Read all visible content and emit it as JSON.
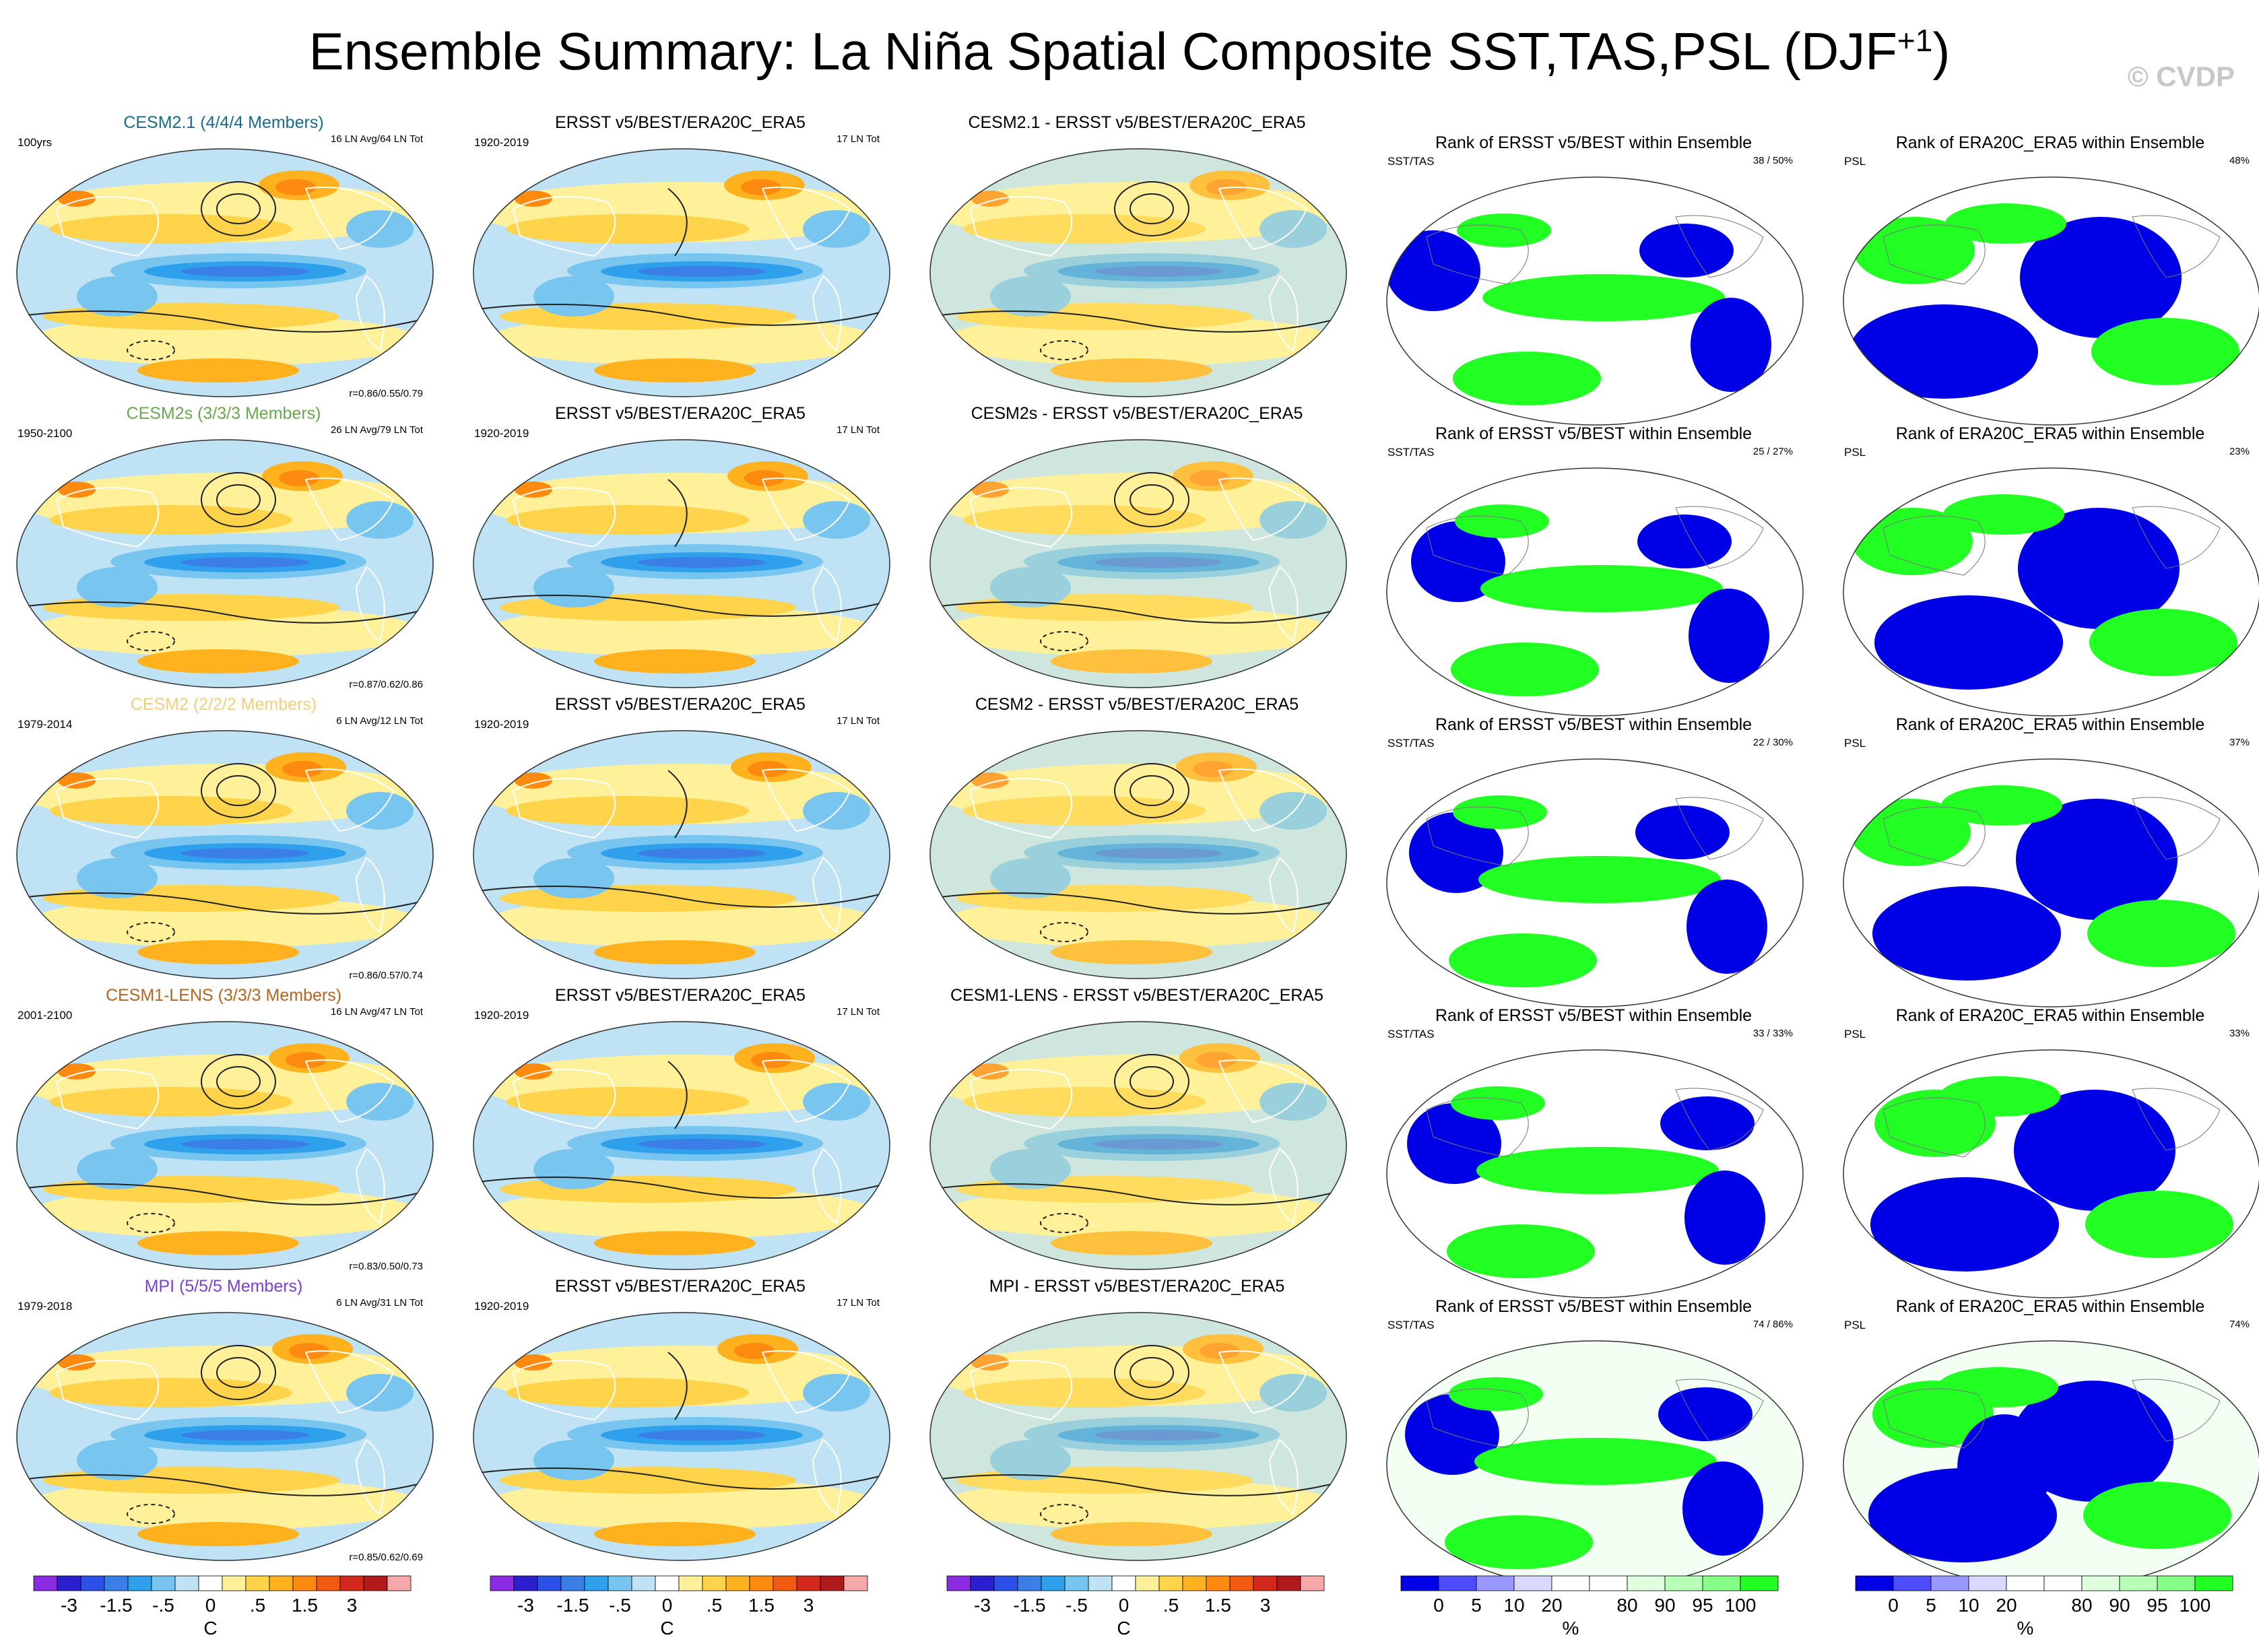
{
  "title": {
    "main": "Ensemble Summary: La Niña Spatial Composite SST,TAS,PSL (DJF",
    "superscript": "+1",
    "closing": ")"
  },
  "copyright": "© CVDP",
  "colors": {
    "anom_scale": [
      "#8a2be2",
      "#2c1fd0",
      "#2a50e8",
      "#3a7ee6",
      "#2fa0ec",
      "#78c6f0",
      "#bfe3f4",
      "#ffffff",
      "#fff19a",
      "#ffd44a",
      "#ffb21e",
      "#ff8a10",
      "#f25a12",
      "#d4281c",
      "#b01a1a",
      "#f7a8a8"
    ],
    "rank_scale": [
      "#0000e6",
      "#4d4dff",
      "#9898ff",
      "#d9d9ff",
      "#ffffff",
      "#ffffff",
      "#dfffdf",
      "#b8ffb8",
      "#86ff86",
      "#22ff22"
    ],
    "title_colors": {
      "cesm21": "#1a6b8a",
      "cesm2s": "#6aa84f",
      "cesm2": "#f0d07a",
      "cesm1lens": "#b5651d",
      "mpi": "#7b3fd1"
    }
  },
  "rows": [
    {
      "id": "cesm21",
      "model": {
        "title": "CESM2.1 (4/4/4 Members)",
        "years": "100yrs",
        "stats": "16 LN Avg/64 LN Tot",
        "corr": "r=0.86/0.55/0.79"
      },
      "obs": {
        "title": "ERSST v5/BEST/ERA20C_ERA5",
        "years": "1920-2019",
        "stats": "17 LN Tot"
      },
      "diff": {
        "title": "CESM2.1 - ERSST v5/BEST/ERA20C_ERA5"
      },
      "rank_sst": {
        "title": "Rank of ERSST v5/BEST within Ensemble",
        "label": "SST/TAS",
        "pct": "38 / 50%"
      },
      "rank_psl": {
        "title": "Rank of ERA20C_ERA5 within Ensemble",
        "label": "PSL",
        "pct": "48%"
      }
    },
    {
      "id": "cesm2s",
      "model": {
        "title": "CESM2s (3/3/3 Members)",
        "years": "1950-2100",
        "stats": "26 LN Avg/79 LN Tot",
        "corr": "r=0.87/0.62/0.86"
      },
      "obs": {
        "title": "ERSST v5/BEST/ERA20C_ERA5",
        "years": "1920-2019",
        "stats": "17 LN Tot"
      },
      "diff": {
        "title": "CESM2s - ERSST v5/BEST/ERA20C_ERA5"
      },
      "rank_sst": {
        "title": "Rank of ERSST v5/BEST within Ensemble",
        "label": "SST/TAS",
        "pct": "25 / 27%"
      },
      "rank_psl": {
        "title": "Rank of ERA20C_ERA5 within Ensemble",
        "label": "PSL",
        "pct": "23%"
      }
    },
    {
      "id": "cesm2",
      "model": {
        "title": "CESM2 (2/2/2 Members)",
        "years": "1979-2014",
        "stats": "6 LN Avg/12 LN Tot",
        "corr": "r=0.86/0.57/0.74"
      },
      "obs": {
        "title": "ERSST v5/BEST/ERA20C_ERA5",
        "years": "1920-2019",
        "stats": "17 LN Tot"
      },
      "diff": {
        "title": "CESM2 - ERSST v5/BEST/ERA20C_ERA5"
      },
      "rank_sst": {
        "title": "Rank of ERSST v5/BEST within Ensemble",
        "label": "SST/TAS",
        "pct": "22 / 30%"
      },
      "rank_psl": {
        "title": "Rank of ERA20C_ERA5 within Ensemble",
        "label": "PSL",
        "pct": "37%"
      }
    },
    {
      "id": "cesm1lens",
      "model": {
        "title": "CESM1-LENS (3/3/3 Members)",
        "years": "2001-2100",
        "stats": "16 LN Avg/47 LN Tot",
        "corr": "r=0.83/0.50/0.73"
      },
      "obs": {
        "title": "ERSST v5/BEST/ERA20C_ERA5",
        "years": "1920-2019",
        "stats": "17 LN Tot"
      },
      "diff": {
        "title": "CESM1-LENS - ERSST v5/BEST/ERA20C_ERA5"
      },
      "rank_sst": {
        "title": "Rank of ERSST v5/BEST within Ensemble",
        "label": "SST/TAS",
        "pct": "33 / 33%"
      },
      "rank_psl": {
        "title": "Rank of ERA20C_ERA5 within Ensemble",
        "label": "PSL",
        "pct": "33%"
      }
    },
    {
      "id": "mpi",
      "model": {
        "title": "MPI (5/5/5 Members)",
        "years": "1979-2018",
        "stats": "6 LN Avg/31 LN Tot",
        "corr": "r=0.85/0.62/0.69"
      },
      "obs": {
        "title": "ERSST v5/BEST/ERA20C_ERA5",
        "years": "1920-2019",
        "stats": "17 LN Tot"
      },
      "diff": {
        "title": "MPI - ERSST v5/BEST/ERA20C_ERA5"
      },
      "rank_sst": {
        "title": "Rank of ERSST v5/BEST within Ensemble",
        "label": "SST/TAS",
        "pct": "74 / 86%"
      },
      "rank_psl": {
        "title": "Rank of ERA20C_ERA5 within Ensemble",
        "label": "PSL",
        "pct": "74%"
      }
    }
  ],
  "colorbars": {
    "anom": {
      "labels": [
        "-3",
        "-1.5",
        "-.5",
        "0",
        ".5",
        "1.5",
        "3"
      ],
      "unit": "C"
    },
    "rank": {
      "labels": [
        "0",
        "5",
        "10",
        "20",
        "80",
        "90",
        "95",
        "100"
      ],
      "unit": "%"
    }
  }
}
